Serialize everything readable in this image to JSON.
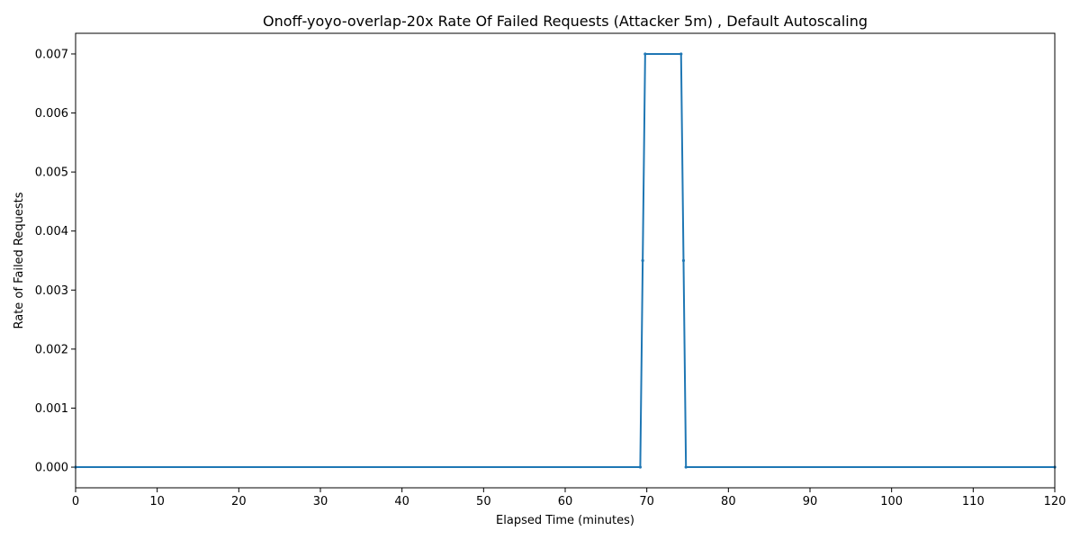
{
  "chart_data": {
    "type": "line",
    "title": "Onoff-yoyo-overlap-20x Rate Of Failed Requests (Attacker 5m) , Default Autoscaling",
    "xlabel": "Elapsed Time (minutes)",
    "ylabel": "Rate of Failed Requests",
    "xlim": [
      0,
      120
    ],
    "ylim": [
      -0.00035,
      0.00735
    ],
    "xticks": [
      0,
      10,
      20,
      30,
      40,
      50,
      60,
      70,
      80,
      90,
      100,
      110,
      120
    ],
    "xtick_labels": [
      "0",
      "10",
      "20",
      "30",
      "40",
      "50",
      "60",
      "70",
      "80",
      "90",
      "100",
      "110",
      "120"
    ],
    "yticks": [
      0,
      0.001,
      0.002,
      0.003,
      0.004,
      0.005,
      0.006,
      0.007
    ],
    "ytick_labels": [
      "0.000",
      "0.001",
      "0.002",
      "0.003",
      "0.004",
      "0.005",
      "0.006",
      "0.007"
    ],
    "grid": false,
    "legend": "none",
    "series": [
      {
        "color": "#1f77b4",
        "marker": "dot",
        "x": [
          0,
          69.2,
          69.5,
          69.8,
          74.2,
          74.5,
          74.8,
          120
        ],
        "y": [
          0,
          0,
          0.0035,
          0.007,
          0.007,
          0.0035,
          0,
          0
        ]
      }
    ]
  }
}
